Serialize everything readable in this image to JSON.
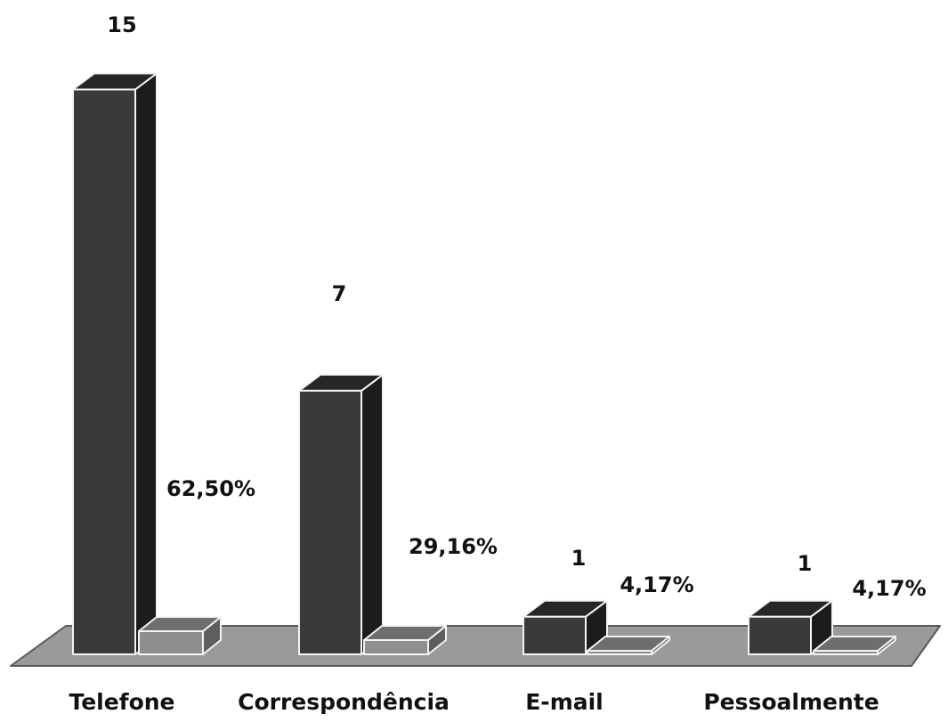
{
  "chart_data": {
    "type": "bar",
    "style": "3d-columns",
    "categories": [
      "Telefone",
      "Correspondência",
      "E-mail",
      "Pessoalmente"
    ],
    "series": [
      {
        "values": [
          15,
          7,
          1,
          1
        ],
        "labels": [
          "15",
          "7",
          "1",
          "1"
        ]
      },
      {
        "values": [
          62.5,
          29.16,
          4.17,
          4.17
        ],
        "labels": [
          "62,50%",
          "29,16%",
          "4,17%",
          "4,17%"
        ]
      }
    ],
    "title": "",
    "xlabel": "",
    "ylabel": "",
    "grid": false,
    "legend": "none"
  },
  "colors": {
    "bar_front": "#3a3a3a",
    "bar_top": "#262626",
    "bar_side": "#1c1c1c",
    "small_front": "#8f8f8f",
    "small_top": "#6e6e6e",
    "small_side": "#5e5e5e",
    "floor": "#9a9a9a",
    "floor_edge": "#5a5a5a",
    "outline": "#f4f4f4"
  }
}
